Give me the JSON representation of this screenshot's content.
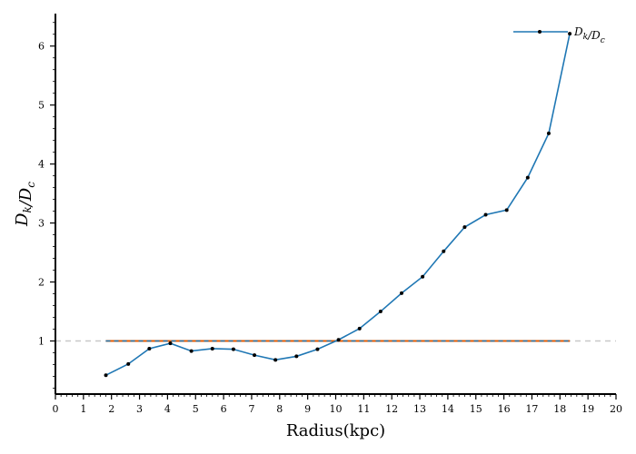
{
  "chart_data": {
    "type": "line",
    "xlabel": "Radius(kpc)",
    "ylabel": "D_k/D_c",
    "xlim": [
      0,
      20
    ],
    "ylim": [
      0.1,
      6.55
    ],
    "x_ticks": [
      0,
      1,
      2,
      3,
      4,
      5,
      6,
      7,
      8,
      9,
      10,
      11,
      12,
      13,
      14,
      15,
      16,
      17,
      18,
      19,
      20
    ],
    "y_ticks": [
      1,
      2,
      3,
      4,
      5,
      6
    ],
    "legend": {
      "placement": "top-right"
    },
    "grid": false,
    "series": [
      {
        "name": "D_k/D_c",
        "color": "#1f77b4",
        "marker_color": "#000000",
        "x": [
          1.8,
          2.6,
          3.35,
          4.1,
          4.85,
          5.6,
          6.35,
          7.1,
          7.85,
          8.6,
          9.35,
          10.1,
          10.85,
          11.6,
          12.35,
          13.1,
          13.85,
          14.6,
          15.35,
          16.1,
          16.85,
          17.6,
          18.35
        ],
        "y": [
          0.42,
          0.61,
          0.87,
          0.96,
          0.83,
          0.87,
          0.86,
          0.76,
          0.68,
          0.74,
          0.86,
          1.02,
          1.21,
          1.5,
          1.81,
          2.09,
          2.52,
          2.93,
          3.14,
          3.22,
          3.77,
          4.52,
          6.21
        ]
      }
    ],
    "reference_lines": [
      {
        "kind": "horizontal",
        "y": 1,
        "x_range": [
          0,
          20
        ],
        "color": "#c8c8c8",
        "style": "dashed"
      },
      {
        "kind": "horizontal",
        "y": 1,
        "x_range": [
          1.8,
          18.35
        ],
        "color": "#e35a00",
        "style": "solid"
      },
      {
        "kind": "horizontal",
        "y": 1,
        "x_range": [
          1.8,
          18.35
        ],
        "color": "#1f77b4",
        "style": "dashed"
      }
    ]
  }
}
